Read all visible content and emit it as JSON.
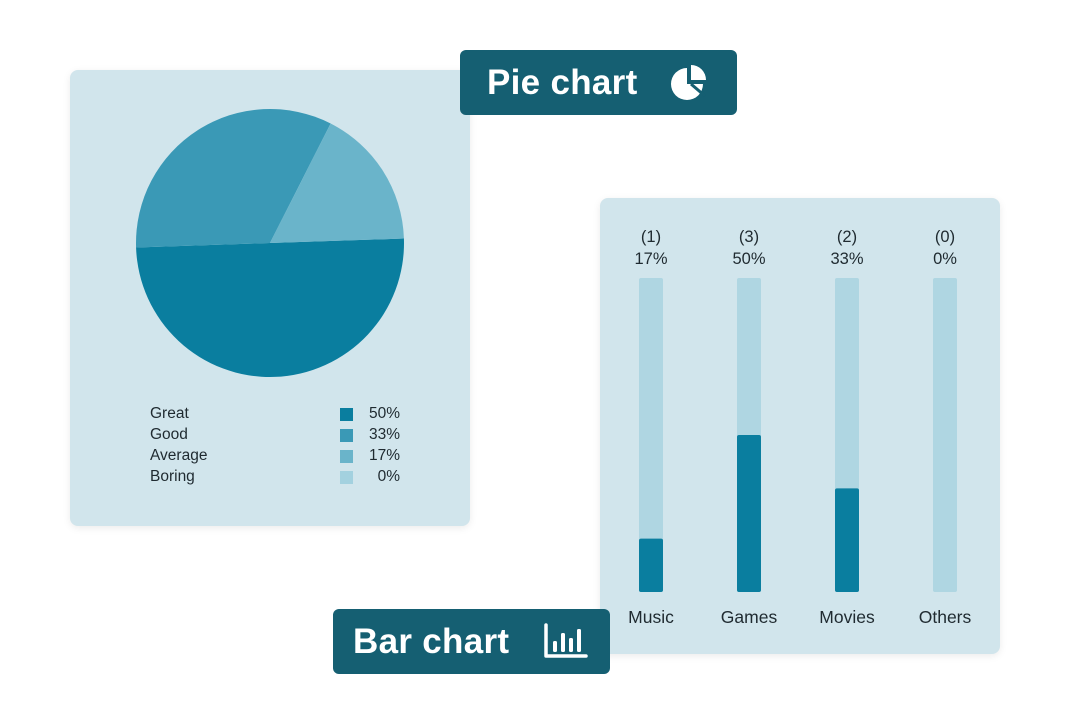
{
  "colors": {
    "card_bg": "#d1e5ec",
    "tag_bg": "#155f72",
    "tag_text": "#ffffff",
    "track": "#afd6e2",
    "bar_fill": "#0a7e9f"
  },
  "pie_tag": {
    "label": "Pie chart",
    "icon": "pie-chart-icon"
  },
  "bar_tag": {
    "label": "Bar chart",
    "icon": "bar-chart-icon"
  },
  "chart_data": [
    {
      "type": "pie",
      "slices": [
        {
          "label": "Great",
          "value": 50,
          "value_label": "50%",
          "color": "#0a7e9f"
        },
        {
          "label": "Good",
          "value": 33,
          "value_label": "33%",
          "color": "#3a99b6"
        },
        {
          "label": "Average",
          "value": 17,
          "value_label": "17%",
          "color": "#6ab4ca"
        },
        {
          "label": "Boring",
          "value": 0,
          "value_label": "0%",
          "color": "#a3d1df"
        }
      ],
      "legend_position": "bottom"
    },
    {
      "type": "bar",
      "categories": [
        "Music",
        "Games",
        "Movies",
        "Others"
      ],
      "counts": [
        "(1)",
        "(3)",
        "(2)",
        "(0)"
      ],
      "values": [
        17,
        50,
        33,
        0
      ],
      "value_labels": [
        "17%",
        "50%",
        "33%",
        "0%"
      ],
      "ylim": [
        0,
        100
      ]
    }
  ]
}
